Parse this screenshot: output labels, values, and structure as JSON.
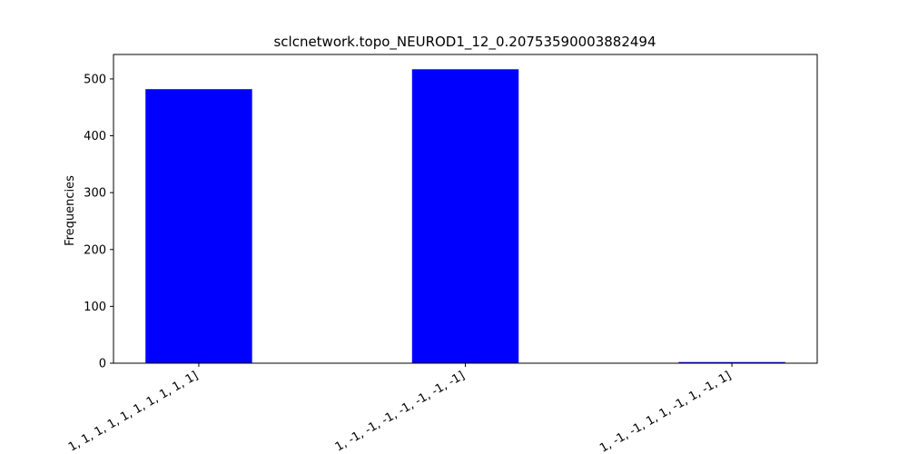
{
  "chart_data": {
    "type": "bar",
    "title": "sclcnetwork.topo_NEUROD1_12_0.20753590003882494",
    "y_label": "Frequencies",
    "categories": [
      "1, 1, 1, 1, 1, 1, 1, 1, 1, 1]",
      "1, -1, -1, -1, -1, -1, -1, -1]",
      "1, -1, -1, 1, 1, -1, 1, -1, 1]"
    ],
    "values": [
      482,
      517,
      2
    ],
    "color": "#0000ff",
    "ylim": [
      0,
      543
    ],
    "yticks": [
      0,
      100,
      200,
      300,
      400,
      500
    ],
    "grid": false
  }
}
